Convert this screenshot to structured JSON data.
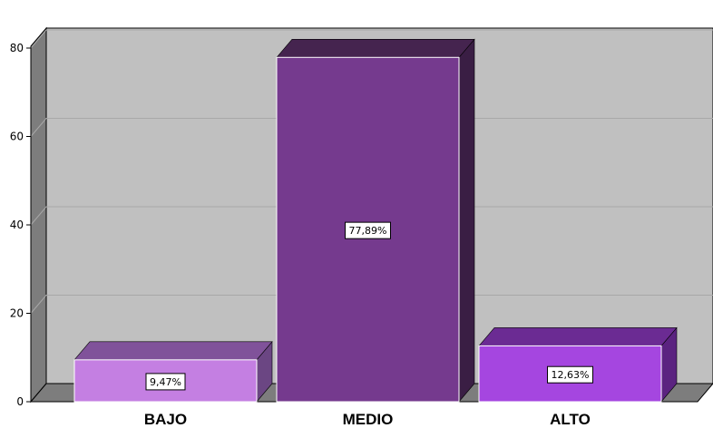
{
  "chart_data": {
    "type": "bar",
    "categories": [
      "BAJO",
      "MEDIO",
      "ALTO"
    ],
    "values": [
      9.47,
      77.89,
      12.63
    ],
    "data_labels": [
      "9,47%",
      "77,89%",
      "12,63%"
    ],
    "yticks": [
      "0",
      "20",
      "40",
      "60",
      "80"
    ],
    "ylim": [
      0,
      80
    ],
    "grid": true,
    "legend": "none",
    "colors": {
      "plot_background": "#c0c0c0",
      "left_wall": "#7d7d7d",
      "floor": "#7d7d7d",
      "gridline": "#a8a8a8",
      "bars": [
        {
          "front": "#c47fe2",
          "top": "#80529a",
          "side": "#6b4683"
        },
        {
          "front": "#753a8e",
          "top": "#45244f",
          "side": "#3a1e44"
        },
        {
          "front": "#a546e0",
          "top": "#6b2b93",
          "side": "#5b2380"
        }
      ]
    }
  }
}
